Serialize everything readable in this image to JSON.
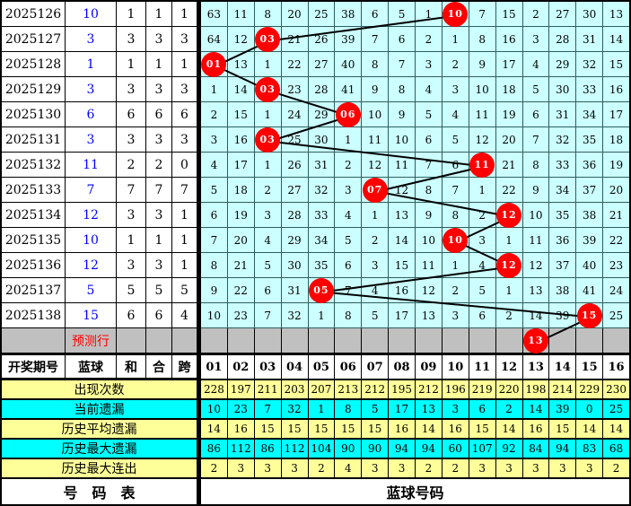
{
  "colors": {
    "grid_cell": "#CCFFFF",
    "grid_border": "#2e5f5f",
    "ball_red": "#FF0000",
    "blue_ball_text": "#0000FF",
    "prediction_gray": "#C0C0C0",
    "stat_yellow": "#FFFF99",
    "stat_cyan": "#00FFFF",
    "trend_line": "#000000"
  },
  "chart_data": {
    "type": "table",
    "left_columns": {
      "period": "开奖期号",
      "blue": "蓝球",
      "sum": "和",
      "combine": "合",
      "span": "跨"
    },
    "ball_columns": [
      "01",
      "02",
      "03",
      "04",
      "05",
      "06",
      "07",
      "08",
      "09",
      "10",
      "11",
      "12",
      "13",
      "14",
      "15",
      "16"
    ],
    "rows": [
      {
        "period": "2025126",
        "blue": "10",
        "sum": "1",
        "combine": "1",
        "span_v": "1",
        "circle": {
          "col": 10,
          "label": "10"
        },
        "cells": [
          "63",
          "11",
          "8",
          "20",
          "25",
          "38",
          "6",
          "5",
          "1",
          "",
          "7",
          "15",
          "2",
          "27",
          "30",
          "13"
        ]
      },
      {
        "period": "2025127",
        "blue": "3",
        "sum": "3",
        "combine": "3",
        "span_v": "3",
        "circle": {
          "col": 3,
          "label": "03"
        },
        "cells": [
          "64",
          "12",
          "",
          "21",
          "26",
          "39",
          "7",
          "6",
          "2",
          "1",
          "8",
          "16",
          "3",
          "28",
          "31",
          "14"
        ]
      },
      {
        "period": "2025128",
        "blue": "1",
        "sum": "1",
        "combine": "1",
        "span_v": "1",
        "circle": {
          "col": 1,
          "label": "01"
        },
        "cells": [
          "",
          "13",
          "1",
          "22",
          "27",
          "40",
          "8",
          "7",
          "3",
          "2",
          "9",
          "17",
          "4",
          "29",
          "32",
          "15"
        ]
      },
      {
        "period": "2025129",
        "blue": "3",
        "sum": "3",
        "combine": "3",
        "span_v": "3",
        "circle": {
          "col": 3,
          "label": "03"
        },
        "cells": [
          "1",
          "14",
          "",
          "23",
          "28",
          "41",
          "9",
          "8",
          "4",
          "3",
          "10",
          "18",
          "5",
          "30",
          "33",
          "16"
        ]
      },
      {
        "period": "2025130",
        "blue": "6",
        "sum": "6",
        "combine": "6",
        "span_v": "6",
        "circle": {
          "col": 6,
          "label": "06"
        },
        "cells": [
          "2",
          "15",
          "1",
          "24",
          "29",
          "",
          "10",
          "9",
          "5",
          "4",
          "11",
          "19",
          "6",
          "31",
          "34",
          "17"
        ]
      },
      {
        "period": "2025131",
        "blue": "3",
        "sum": "3",
        "combine": "3",
        "span_v": "3",
        "circle": {
          "col": 3,
          "label": "03"
        },
        "cells": [
          "3",
          "16",
          "",
          "25",
          "30",
          "1",
          "11",
          "10",
          "6",
          "5",
          "12",
          "20",
          "7",
          "32",
          "35",
          "18"
        ]
      },
      {
        "period": "2025132",
        "blue": "11",
        "sum": "2",
        "combine": "2",
        "span_v": "0",
        "circle": {
          "col": 11,
          "label": "11"
        },
        "cells": [
          "4",
          "17",
          "1",
          "26",
          "31",
          "2",
          "12",
          "11",
          "7",
          "6",
          "",
          "21",
          "8",
          "33",
          "36",
          "19"
        ]
      },
      {
        "period": "2025133",
        "blue": "7",
        "sum": "7",
        "combine": "7",
        "span_v": "7",
        "circle": {
          "col": 7,
          "label": "07"
        },
        "cells": [
          "5",
          "18",
          "2",
          "27",
          "32",
          "3",
          "",
          "12",
          "8",
          "7",
          "1",
          "22",
          "9",
          "34",
          "37",
          "20"
        ]
      },
      {
        "period": "2025134",
        "blue": "12",
        "sum": "3",
        "combine": "3",
        "span_v": "1",
        "circle": {
          "col": 12,
          "label": "12"
        },
        "cells": [
          "6",
          "19",
          "3",
          "28",
          "33",
          "4",
          "1",
          "13",
          "9",
          "8",
          "2",
          "",
          "10",
          "35",
          "38",
          "21"
        ]
      },
      {
        "period": "2025135",
        "blue": "10",
        "sum": "1",
        "combine": "1",
        "span_v": "1",
        "circle": {
          "col": 10,
          "label": "10"
        },
        "cells": [
          "7",
          "20",
          "4",
          "29",
          "34",
          "5",
          "2",
          "14",
          "10",
          "",
          "3",
          "1",
          "11",
          "36",
          "39",
          "22"
        ]
      },
      {
        "period": "2025136",
        "blue": "12",
        "sum": "3",
        "combine": "3",
        "span_v": "1",
        "circle": {
          "col": 12,
          "label": "12"
        },
        "cells": [
          "8",
          "21",
          "5",
          "30",
          "35",
          "6",
          "3",
          "15",
          "11",
          "1",
          "4",
          "",
          "12",
          "37",
          "40",
          "23"
        ]
      },
      {
        "period": "2025137",
        "blue": "5",
        "sum": "5",
        "combine": "5",
        "span_v": "5",
        "circle": {
          "col": 5,
          "label": "05"
        },
        "cells": [
          "9",
          "22",
          "6",
          "31",
          "",
          "7",
          "4",
          "16",
          "12",
          "2",
          "5",
          "1",
          "13",
          "38",
          "41",
          "24"
        ]
      },
      {
        "period": "2025138",
        "blue": "15",
        "sum": "6",
        "combine": "6",
        "span_v": "4",
        "circle": {
          "col": 15,
          "label": "15"
        },
        "cells": [
          "10",
          "23",
          "7",
          "32",
          "1",
          "8",
          "5",
          "17",
          "13",
          "3",
          "6",
          "2",
          "14",
          "39",
          "",
          "25"
        ]
      }
    ],
    "prediction_row": {
      "label": "预测行",
      "circle": {
        "col": 13,
        "label": "13"
      }
    },
    "stats_rows": [
      {
        "label": "出现次数",
        "bg": "yellow",
        "values": [
          "228",
          "197",
          "211",
          "203",
          "207",
          "213",
          "212",
          "195",
          "212",
          "196",
          "219",
          "220",
          "198",
          "214",
          "229",
          "230"
        ]
      },
      {
        "label": "当前遗漏",
        "bg": "cyan",
        "values": [
          "10",
          "23",
          "7",
          "32",
          "1",
          "8",
          "5",
          "17",
          "13",
          "3",
          "6",
          "2",
          "14",
          "39",
          "0",
          "25"
        ]
      },
      {
        "label": "历史平均遗漏",
        "bg": "yellow",
        "values": [
          "14",
          "16",
          "15",
          "15",
          "15",
          "15",
          "15",
          "16",
          "14",
          "16",
          "15",
          "14",
          "16",
          "15",
          "14",
          "14"
        ]
      },
      {
        "label": "历史最大遗漏",
        "bg": "cyan",
        "values": [
          "86",
          "112",
          "86",
          "112",
          "104",
          "90",
          "90",
          "94",
          "94",
          "60",
          "107",
          "92",
          "84",
          "94",
          "83",
          "68"
        ]
      },
      {
        "label": "历史最大连出",
        "bg": "yellow",
        "values": [
          "2",
          "3",
          "3",
          "3",
          "2",
          "4",
          "3",
          "3",
          "2",
          "2",
          "3",
          "3",
          "3",
          "3",
          "3",
          "2"
        ]
      }
    ],
    "footer": {
      "left_label": "号　码　表",
      "right_label": "蓝球号码"
    }
  }
}
